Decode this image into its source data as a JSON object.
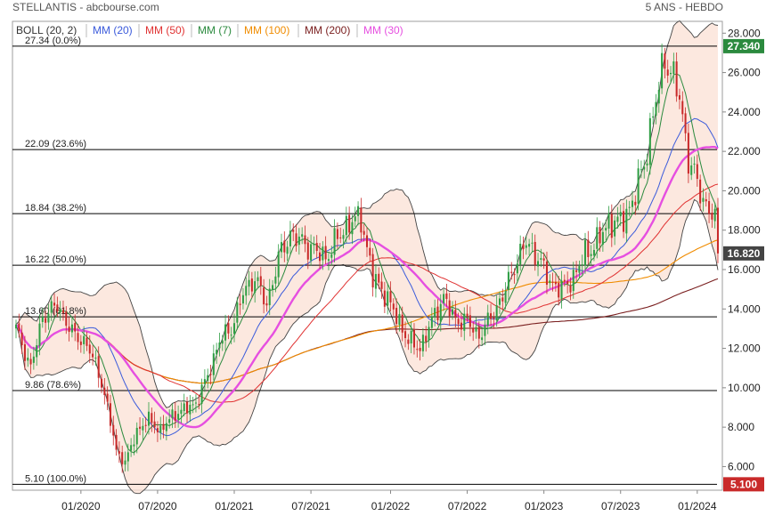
{
  "header": {
    "title": "STELLANTIS - abcbourse.com",
    "period": "5 ANS - HEBDO"
  },
  "legend": [
    {
      "label": "BOLL (20, 2)",
      "color": "#333333"
    },
    {
      "label": "MM (20)",
      "color": "#3b5bdb"
    },
    {
      "label": "MM (50)",
      "color": "#e03131"
    },
    {
      "label": "MM (7)",
      "color": "#2b8a3e"
    },
    {
      "label": "MM (100)",
      "color": "#f08c00"
    },
    {
      "label": "MM (200)",
      "color": "#7a1f1f"
    },
    {
      "label": "MM (30)",
      "color": "#e64fe0"
    }
  ],
  "chart_data": {
    "type": "candlestick",
    "y_ticks": [
      "6.000",
      "8.000",
      "10.000",
      "12.000",
      "14.000",
      "16.000",
      "18.000",
      "20.000",
      "22.000",
      "24.000",
      "26.000",
      "28.000"
    ],
    "x_ticks": [
      "01/2020",
      "07/2020",
      "01/2021",
      "07/2021",
      "01/2022",
      "07/2022",
      "01/2023",
      "07/2023",
      "01/2024"
    ],
    "ylim": [
      4.8,
      28.6
    ],
    "fibonacci": [
      {
        "value": 27.34,
        "label": "27.34  (0.0%)"
      },
      {
        "value": 22.09,
        "label": "22.09  (23.6%)"
      },
      {
        "value": 18.84,
        "label": "18.84  (38.2%)"
      },
      {
        "value": 16.22,
        "label": "16.22  (50.0%)"
      },
      {
        "value": 13.6,
        "label": "13.60  (61.8%)"
      },
      {
        "value": 9.86,
        "label": "9.86  (78.6%)"
      },
      {
        "value": 5.1,
        "label": "5.10  (100.0%)"
      }
    ],
    "price_tags": [
      {
        "value": 27.34,
        "text": "27.340",
        "color": "#2b8a3e"
      },
      {
        "value": 16.82,
        "text": "16.820",
        "color": "#444444"
      },
      {
        "value": 5.1,
        "text": "5.100",
        "color": "#c92a2a"
      }
    ],
    "price_keypoints": [
      [
        0,
        13.0
      ],
      [
        5,
        11.0
      ],
      [
        9,
        13.6
      ],
      [
        14,
        14.2
      ],
      [
        19,
        12.8
      ],
      [
        24,
        12.2
      ],
      [
        28,
        10.8
      ],
      [
        31,
        9.0
      ],
      [
        34,
        6.8
      ],
      [
        37,
        6.2
      ],
      [
        41,
        7.8
      ],
      [
        45,
        8.4
      ],
      [
        49,
        7.8
      ],
      [
        53,
        8.6
      ],
      [
        57,
        8.9
      ],
      [
        61,
        9.2
      ],
      [
        65,
        10.6
      ],
      [
        69,
        12.4
      ],
      [
        73,
        13.0
      ],
      [
        77,
        14.8
      ],
      [
        81,
        15.6
      ],
      [
        85,
        14.2
      ],
      [
        89,
        16.6
      ],
      [
        93,
        17.8
      ],
      [
        97,
        17.4
      ],
      [
        101,
        17.0
      ],
      [
        105,
        16.6
      ],
      [
        109,
        17.6
      ],
      [
        113,
        18.4
      ],
      [
        117,
        18.6
      ],
      [
        121,
        15.6
      ],
      [
        125,
        14.8
      ],
      [
        129,
        13.6
      ],
      [
        133,
        12.4
      ],
      [
        137,
        12.0
      ],
      [
        141,
        13.4
      ],
      [
        145,
        14.6
      ],
      [
        149,
        13.4
      ],
      [
        153,
        13.4
      ],
      [
        157,
        12.6
      ],
      [
        161,
        13.6
      ],
      [
        165,
        14.6
      ],
      [
        169,
        16.2
      ],
      [
        173,
        17.4
      ],
      [
        177,
        16.6
      ],
      [
        181,
        15.4
      ],
      [
        185,
        15.0
      ],
      [
        189,
        15.6
      ],
      [
        193,
        16.8
      ],
      [
        197,
        17.4
      ],
      [
        201,
        18.4
      ],
      [
        205,
        18.4
      ],
      [
        209,
        19.4
      ],
      [
        213,
        21.4
      ],
      [
        217,
        24.6
      ],
      [
        220,
        26.8
      ],
      [
        222,
        26.0
      ],
      [
        225,
        24.8
      ],
      [
        228,
        21.6
      ],
      [
        231,
        20.4
      ],
      [
        234,
        19.2
      ],
      [
        237,
        18.6
      ],
      [
        238,
        16.8
      ]
    ],
    "candles_count": 239
  }
}
